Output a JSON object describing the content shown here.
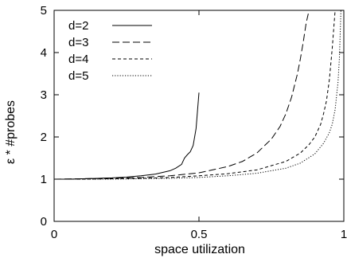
{
  "chart_data": {
    "type": "line",
    "title": "",
    "xlabel": "space utilization",
    "ylabel": "ε * #probes",
    "xlim": [
      0,
      1
    ],
    "ylim": [
      0,
      5
    ],
    "x_ticks": [
      0,
      0.5,
      1
    ],
    "x_tick_labels": [
      "0",
      "0.5",
      "1"
    ],
    "y_ticks": [
      0,
      1,
      2,
      3,
      4,
      5
    ],
    "y_tick_labels": [
      "0",
      "1",
      "2",
      "3",
      "4",
      "5"
    ],
    "grid": false,
    "legend_position": "top-left",
    "series": [
      {
        "name": "d=2",
        "style": "solid",
        "x": [
          0.0,
          0.05,
          0.1,
          0.15,
          0.2,
          0.25,
          0.3,
          0.35,
          0.4,
          0.42,
          0.44,
          0.45,
          0.46,
          0.47,
          0.48,
          0.49,
          0.5
        ],
        "y": [
          1.0,
          1.0,
          1.01,
          1.02,
          1.03,
          1.05,
          1.08,
          1.12,
          1.2,
          1.26,
          1.35,
          1.5,
          1.58,
          1.65,
          1.8,
          2.2,
          3.05
        ]
      },
      {
        "name": "d=3",
        "style": "dashed",
        "x": [
          0.0,
          0.1,
          0.2,
          0.3,
          0.4,
          0.5,
          0.6,
          0.65,
          0.7,
          0.75,
          0.78,
          0.8,
          0.82,
          0.84,
          0.85,
          0.86,
          0.87,
          0.88
        ],
        "y": [
          1.0,
          1.01,
          1.02,
          1.04,
          1.08,
          1.15,
          1.3,
          1.42,
          1.62,
          1.95,
          2.25,
          2.55,
          2.95,
          3.5,
          3.85,
          4.25,
          4.7,
          5.0
        ]
      },
      {
        "name": "d=4",
        "style": "short-dashed",
        "x": [
          0.0,
          0.1,
          0.2,
          0.3,
          0.4,
          0.5,
          0.6,
          0.7,
          0.8,
          0.85,
          0.88,
          0.9,
          0.92,
          0.93,
          0.94,
          0.95,
          0.96,
          0.97
        ],
        "y": [
          1.0,
          1.0,
          1.01,
          1.02,
          1.04,
          1.08,
          1.13,
          1.22,
          1.42,
          1.62,
          1.82,
          2.0,
          2.3,
          2.55,
          2.85,
          3.35,
          4.1,
          5.0
        ]
      },
      {
        "name": "d=5",
        "style": "dotted",
        "x": [
          0.0,
          0.1,
          0.2,
          0.3,
          0.4,
          0.5,
          0.6,
          0.7,
          0.8,
          0.85,
          0.9,
          0.93,
          0.95,
          0.96,
          0.97,
          0.98,
          0.985,
          0.99
        ],
        "y": [
          1.0,
          1.0,
          1.0,
          1.01,
          1.02,
          1.04,
          1.08,
          1.14,
          1.26,
          1.38,
          1.6,
          1.85,
          2.1,
          2.3,
          2.65,
          3.3,
          3.9,
          5.0
        ]
      }
    ]
  }
}
